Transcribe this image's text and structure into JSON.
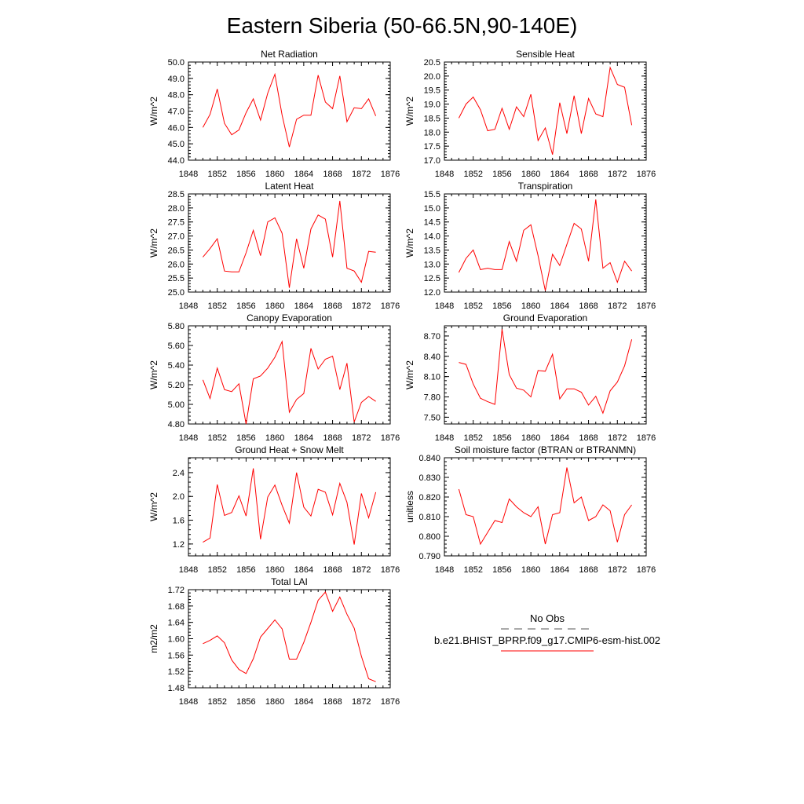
{
  "figure": {
    "title": "Eastern Siberia (50-66.5N,90-140E)"
  },
  "legend": {
    "entries": [
      {
        "label": "No Obs",
        "style": "dashed",
        "color": "#555555"
      },
      {
        "label": "b.e21.BHIST_BPRP.f09_g17.CMIP6-esm-hist.002",
        "style": "solid",
        "color": "#ff0000"
      }
    ]
  },
  "colors": {
    "series": "#ff0000",
    "obs": "#555555",
    "axes": "#000000"
  },
  "chart_data": [
    {
      "type": "line",
      "title": "Net Radiation",
      "ylabel": "W/m^2",
      "xlim": [
        1848,
        1876
      ],
      "xticks": [
        1848,
        1852,
        1856,
        1860,
        1864,
        1868,
        1872,
        1876
      ],
      "ylim": [
        44.0,
        50.0
      ],
      "yticks": [
        44.0,
        45.0,
        46.0,
        47.0,
        48.0,
        49.0,
        50.0
      ],
      "ytick_labels": [
        "44.0",
        "45.0",
        "46.0",
        "47.0",
        "48.0",
        "49.0",
        "50.0"
      ],
      "x": [
        1850,
        1851,
        1852,
        1853,
        1854,
        1855,
        1856,
        1857,
        1858,
        1859,
        1860,
        1861,
        1862,
        1863,
        1864,
        1865,
        1866,
        1867,
        1868,
        1869,
        1870,
        1871,
        1872,
        1873,
        1874
      ],
      "series": [
        {
          "name": "b.e21.BHIST_BPRP.f09_g17.CMIP6-esm-hist.002",
          "values": [
            46.0,
            46.8,
            48.35,
            46.25,
            45.55,
            45.85,
            46.9,
            47.75,
            46.45,
            48.1,
            49.25,
            46.75,
            44.8,
            46.5,
            46.75,
            46.75,
            49.2,
            47.55,
            47.15,
            49.15,
            46.35,
            47.2,
            47.15,
            47.75,
            46.7
          ]
        }
      ]
    },
    {
      "type": "line",
      "title": "Sensible Heat",
      "ylabel": "W/m^2",
      "xlim": [
        1848,
        1876
      ],
      "xticks": [
        1848,
        1852,
        1856,
        1860,
        1864,
        1868,
        1872,
        1876
      ],
      "ylim": [
        17.0,
        20.5
      ],
      "yticks": [
        17.0,
        17.5,
        18.0,
        18.5,
        19.0,
        19.5,
        20.0,
        20.5
      ],
      "ytick_labels": [
        "17.0",
        "17.5",
        "18.0",
        "18.5",
        "19.0",
        "19.5",
        "20.0",
        "20.5"
      ],
      "x": [
        1850,
        1851,
        1852,
        1853,
        1854,
        1855,
        1856,
        1857,
        1858,
        1859,
        1860,
        1861,
        1862,
        1863,
        1864,
        1865,
        1866,
        1867,
        1868,
        1869,
        1870,
        1871,
        1872,
        1873,
        1874
      ],
      "series": [
        {
          "name": "b.e21.BHIST_BPRP.f09_g17.CMIP6-esm-hist.002",
          "values": [
            18.5,
            19.0,
            19.25,
            18.8,
            18.05,
            18.1,
            18.85,
            18.1,
            18.9,
            18.55,
            19.35,
            17.7,
            18.15,
            17.2,
            19.05,
            17.95,
            19.3,
            17.95,
            19.2,
            18.65,
            18.55,
            20.3,
            19.7,
            19.6,
            18.25
          ]
        }
      ]
    },
    {
      "type": "line",
      "title": "Latent Heat",
      "ylabel": "W/m^2",
      "xlim": [
        1848,
        1876
      ],
      "xticks": [
        1848,
        1852,
        1856,
        1860,
        1864,
        1868,
        1872,
        1876
      ],
      "ylim": [
        25.0,
        28.5
      ],
      "yticks": [
        25.0,
        25.5,
        26.0,
        26.5,
        27.0,
        27.5,
        28.0,
        28.5
      ],
      "ytick_labels": [
        "25.0",
        "25.5",
        "26.0",
        "26.5",
        "27.0",
        "27.5",
        "28.0",
        "28.5"
      ],
      "x": [
        1850,
        1851,
        1852,
        1853,
        1854,
        1855,
        1856,
        1857,
        1858,
        1859,
        1860,
        1861,
        1862,
        1863,
        1864,
        1865,
        1866,
        1867,
        1868,
        1869,
        1870,
        1871,
        1872,
        1873,
        1874
      ],
      "series": [
        {
          "name": "b.e21.BHIST_BPRP.f09_g17.CMIP6-esm-hist.002",
          "values": [
            26.25,
            26.55,
            26.9,
            25.75,
            25.72,
            25.72,
            26.4,
            27.2,
            26.3,
            27.5,
            27.65,
            27.1,
            25.15,
            26.9,
            25.85,
            27.25,
            27.75,
            27.6,
            26.25,
            28.25,
            25.85,
            25.75,
            25.35,
            26.45,
            26.42
          ]
        }
      ]
    },
    {
      "type": "line",
      "title": "Transpiration",
      "ylabel": "W/m^2",
      "xlim": [
        1848,
        1876
      ],
      "xticks": [
        1848,
        1852,
        1856,
        1860,
        1864,
        1868,
        1872,
        1876
      ],
      "ylim": [
        12.0,
        15.5
      ],
      "yticks": [
        12.0,
        12.5,
        13.0,
        13.5,
        14.0,
        14.5,
        15.0,
        15.5
      ],
      "ytick_labels": [
        "12.0",
        "12.5",
        "13.0",
        "13.5",
        "14.0",
        "14.5",
        "15.0",
        "15.5"
      ],
      "x": [
        1850,
        1851,
        1852,
        1853,
        1854,
        1855,
        1856,
        1857,
        1858,
        1859,
        1860,
        1861,
        1862,
        1863,
        1864,
        1865,
        1866,
        1867,
        1868,
        1869,
        1870,
        1871,
        1872,
        1873,
        1874
      ],
      "series": [
        {
          "name": "b.e21.BHIST_BPRP.f09_g17.CMIP6-esm-hist.002",
          "values": [
            12.7,
            13.2,
            13.5,
            12.8,
            12.85,
            12.8,
            12.8,
            13.8,
            13.1,
            14.2,
            14.4,
            13.3,
            12.05,
            13.35,
            12.95,
            13.7,
            14.45,
            14.25,
            13.1,
            15.3,
            12.85,
            13.05,
            12.35,
            13.1,
            12.75
          ]
        }
      ]
    },
    {
      "type": "line",
      "title": "Canopy Evaporation",
      "ylabel": "W/m^2",
      "xlim": [
        1848,
        1876
      ],
      "xticks": [
        1848,
        1852,
        1856,
        1860,
        1864,
        1868,
        1872,
        1876
      ],
      "ylim": [
        4.8,
        5.8
      ],
      "yticks": [
        4.8,
        5.0,
        5.2,
        5.4,
        5.6,
        5.8
      ],
      "ytick_labels": [
        "4.80",
        "5.00",
        "5.20",
        "5.40",
        "5.60",
        "5.80"
      ],
      "x": [
        1850,
        1851,
        1852,
        1853,
        1854,
        1855,
        1856,
        1857,
        1858,
        1859,
        1860,
        1861,
        1862,
        1863,
        1864,
        1865,
        1866,
        1867,
        1868,
        1869,
        1870,
        1871,
        1872,
        1873,
        1874
      ],
      "series": [
        {
          "name": "b.e21.BHIST_BPRP.f09_g17.CMIP6-esm-hist.002",
          "values": [
            5.25,
            5.06,
            5.37,
            5.15,
            5.13,
            5.21,
            4.8,
            5.26,
            5.29,
            5.37,
            5.48,
            5.64,
            4.92,
            5.05,
            5.11,
            5.57,
            5.36,
            5.46,
            5.49,
            5.15,
            5.42,
            4.82,
            5.02,
            5.08,
            5.03
          ]
        }
      ]
    },
    {
      "type": "line",
      "title": "Ground Evaporation",
      "ylabel": "W/m^2",
      "xlim": [
        1848,
        1876
      ],
      "xticks": [
        1848,
        1852,
        1856,
        1860,
        1864,
        1868,
        1872,
        1876
      ],
      "ylim": [
        7.4,
        8.85
      ],
      "yticks": [
        7.5,
        7.8,
        8.1,
        8.4,
        8.7
      ],
      "ytick_labels": [
        "7.50",
        "7.80",
        "8.10",
        "8.40",
        "8.70"
      ],
      "x": [
        1850,
        1851,
        1852,
        1853,
        1854,
        1855,
        1856,
        1857,
        1858,
        1859,
        1860,
        1861,
        1862,
        1863,
        1864,
        1865,
        1866,
        1867,
        1868,
        1869,
        1870,
        1871,
        1872,
        1873,
        1874
      ],
      "series": [
        {
          "name": "b.e21.BHIST_BPRP.f09_g17.CMIP6-esm-hist.002",
          "values": [
            8.31,
            8.28,
            7.99,
            7.78,
            7.73,
            7.69,
            8.8,
            8.13,
            7.93,
            7.9,
            7.8,
            8.19,
            8.18,
            8.43,
            7.77,
            7.92,
            7.92,
            7.87,
            7.68,
            7.81,
            7.56,
            7.89,
            8.02,
            8.26,
            8.65
          ]
        }
      ]
    },
    {
      "type": "line",
      "title": "Ground Heat + Snow Melt",
      "ylabel": "W/m^2",
      "xlim": [
        1848,
        1876
      ],
      "xticks": [
        1848,
        1852,
        1856,
        1860,
        1864,
        1868,
        1872,
        1876
      ],
      "ylim": [
        1.0,
        2.65
      ],
      "yticks": [
        1.2,
        1.6,
        2.0,
        2.4
      ],
      "ytick_labels": [
        "1.2",
        "1.6",
        "2.0",
        "2.4"
      ],
      "x": [
        1850,
        1851,
        1852,
        1853,
        1854,
        1855,
        1856,
        1857,
        1858,
        1859,
        1860,
        1861,
        1862,
        1863,
        1864,
        1865,
        1866,
        1867,
        1868,
        1869,
        1870,
        1871,
        1872,
        1873,
        1874
      ],
      "series": [
        {
          "name": "b.e21.BHIST_BPRP.f09_g17.CMIP6-esm-hist.002",
          "values": [
            1.23,
            1.3,
            2.2,
            1.68,
            1.73,
            2.01,
            1.67,
            2.47,
            1.28,
            1.99,
            2.19,
            1.85,
            1.55,
            2.4,
            1.82,
            1.67,
            2.12,
            2.07,
            1.69,
            2.22,
            1.9,
            1.19,
            2.05,
            1.64,
            2.07
          ]
        }
      ]
    },
    {
      "type": "line",
      "title": "Soil moisture factor (BTRAN or BTRANMN)",
      "ylabel": "unitless",
      "xlim": [
        1848,
        1876
      ],
      "xticks": [
        1848,
        1852,
        1856,
        1860,
        1864,
        1868,
        1872,
        1876
      ],
      "ylim": [
        0.79,
        0.84
      ],
      "yticks": [
        0.79,
        0.8,
        0.81,
        0.82,
        0.83,
        0.84
      ],
      "ytick_labels": [
        "0.790",
        "0.800",
        "0.810",
        "0.820",
        "0.830",
        "0.840"
      ],
      "x": [
        1850,
        1851,
        1852,
        1853,
        1854,
        1855,
        1856,
        1857,
        1858,
        1859,
        1860,
        1861,
        1862,
        1863,
        1864,
        1865,
        1866,
        1867,
        1868,
        1869,
        1870,
        1871,
        1872,
        1873,
        1874
      ],
      "series": [
        {
          "name": "b.e21.BHIST_BPRP.f09_g17.CMIP6-esm-hist.002",
          "values": [
            0.824,
            0.811,
            0.81,
            0.796,
            0.802,
            0.808,
            0.807,
            0.819,
            0.815,
            0.812,
            0.81,
            0.815,
            0.796,
            0.811,
            0.812,
            0.835,
            0.817,
            0.82,
            0.808,
            0.81,
            0.816,
            0.813,
            0.797,
            0.811,
            0.816
          ]
        }
      ]
    },
    {
      "type": "line",
      "title": "Total LAI",
      "ylabel": "m2/m2",
      "xlim": [
        1848,
        1876
      ],
      "xticks": [
        1848,
        1852,
        1856,
        1860,
        1864,
        1868,
        1872,
        1876
      ],
      "ylim": [
        1.48,
        1.72
      ],
      "yticks": [
        1.48,
        1.52,
        1.56,
        1.6,
        1.64,
        1.68,
        1.72
      ],
      "ytick_labels": [
        "1.48",
        "1.52",
        "1.56",
        "1.60",
        "1.64",
        "1.68",
        "1.72"
      ],
      "x": [
        1850,
        1851,
        1852,
        1853,
        1854,
        1855,
        1856,
        1857,
        1858,
        1859,
        1860,
        1861,
        1862,
        1863,
        1864,
        1865,
        1866,
        1867,
        1868,
        1869,
        1870,
        1871,
        1872,
        1873,
        1874
      ],
      "series": [
        {
          "name": "b.e21.BHIST_BPRP.f09_g17.CMIP6-esm-hist.002",
          "values": [
            1.588,
            1.596,
            1.607,
            1.59,
            1.548,
            1.525,
            1.515,
            1.551,
            1.604,
            1.625,
            1.646,
            1.624,
            1.55,
            1.55,
            1.591,
            1.64,
            1.694,
            1.714,
            1.667,
            1.702,
            1.66,
            1.626,
            1.557,
            1.502,
            1.495
          ]
        }
      ]
    }
  ]
}
